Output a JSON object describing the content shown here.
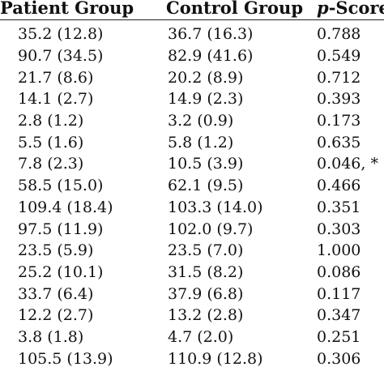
{
  "table": {
    "headers": {
      "patient": "Patient Group",
      "control": "Control Group",
      "p_italic": "p",
      "p_rest": "-Score"
    },
    "rows": [
      {
        "patient": "35.2 (12.8)",
        "control": "36.7 (16.3)",
        "p": "0.788"
      },
      {
        "patient": "90.7 (34.5)",
        "control": "82.9 (41.6)",
        "p": "0.549"
      },
      {
        "patient": "21.7 (8.6)",
        "control": "20.2 (8.9)",
        "p": "0.712"
      },
      {
        "patient": "14.1 (2.7)",
        "control": "14.9 (2.3)",
        "p": "0.393"
      },
      {
        "patient": "2.8 (1.2)",
        "control": "3.2 (0.9)",
        "p": "0.173"
      },
      {
        "patient": "5.5 (1.6)",
        "control": "5.8 (1.2)",
        "p": "0.635"
      },
      {
        "patient": "7.8 (2.3)",
        "control": "10.5 (3.9)",
        "p": "0.046, *"
      },
      {
        "patient": "58.5 (15.0)",
        "control": "62.1 (9.5)",
        "p": "0.466"
      },
      {
        "patient": "109.4 (18.4)",
        "control": "103.3 (14.0)",
        "p": "0.351"
      },
      {
        "patient": "97.5 (11.9)",
        "control": "102.0 (9.7)",
        "p": "0.303"
      },
      {
        "patient": "23.5 (5.9)",
        "control": "23.5 (7.0)",
        "p": "1.000"
      },
      {
        "patient": "25.2 (10.1)",
        "control": "31.5 (8.2)",
        "p": "0.086"
      },
      {
        "patient": "33.7 (6.4)",
        "control": "37.9 (6.8)",
        "p": "0.117"
      },
      {
        "patient": "12.2 (2.7)",
        "control": "13.2 (2.8)",
        "p": "0.347"
      },
      {
        "patient": "3.8 (1.8)",
        "control": "4.7 (2.0)",
        "p": "0.251"
      },
      {
        "patient": "105.5 (13.9)",
        "control": "110.9 (12.8)",
        "p": "0.306"
      }
    ]
  }
}
